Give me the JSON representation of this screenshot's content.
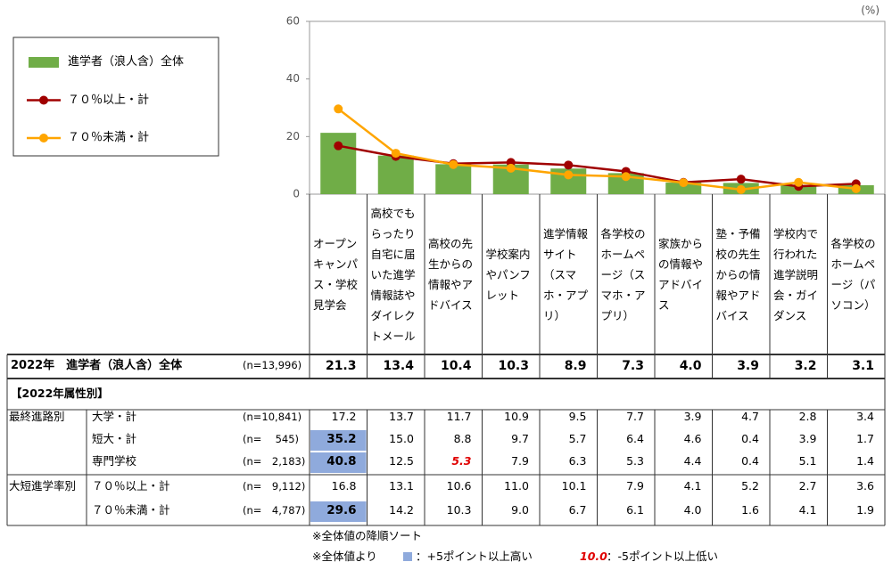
{
  "chart_data": {
    "type": "bar_line",
    "unit": "(%)",
    "ylim": [
      0,
      60
    ],
    "yticks": [
      0,
      20,
      40,
      60
    ],
    "categories": [
      "オープンキャンパス・学校見学会",
      "高校でもらったり自宅に届いた進学情報誌やダイレクトメール",
      "高校の先生からの情報やアドバイス",
      "学校案内やパンフレット",
      "進学情報サイト（スマホ・アプリ）",
      "各学校のホームページ（スマホ・アプリ）",
      "家族からの情報やアドバイス",
      "塾・予備校の先生からの情報やアドバイス",
      "学校内で行われた進学説明会・ガイダンス",
      "各学校のホームページ（パソコン）"
    ],
    "series": [
      {
        "name": "進学者（浪人含）全体",
        "type": "bar",
        "color": "#70ad47",
        "values": [
          21.3,
          13.4,
          10.4,
          10.3,
          8.9,
          7.3,
          4.0,
          3.9,
          3.2,
          3.1
        ],
        "value_labels": [
          "21.3",
          "13.4",
          "10.4",
          "10.3",
          "8.9",
          "7.3",
          "4.0",
          "3.9",
          "3.2",
          "3.1"
        ]
      },
      {
        "name": "７０％以上・計",
        "type": "line",
        "color": "#a00000",
        "values": [
          16.8,
          13.1,
          10.6,
          11.0,
          10.1,
          7.9,
          4.1,
          5.2,
          2.7,
          3.6
        ],
        "value_labels": [
          "16.8",
          "13.1",
          "10.6",
          "11.0",
          "10.1",
          "7.9",
          "4.1",
          "5.2",
          "2.7",
          "3.6"
        ]
      },
      {
        "name": "７０％未満・計",
        "type": "line",
        "color": "#ffa500",
        "values": [
          29.6,
          14.2,
          10.3,
          9.0,
          6.7,
          6.1,
          4.0,
          1.6,
          4.1,
          1.9
        ],
        "value_labels": [
          "29.6",
          "14.2",
          "10.3",
          "9.0",
          "6.7",
          "6.1",
          "4.0",
          "1.6",
          "4.1",
          "1.9"
        ]
      }
    ]
  },
  "table": {
    "overall_label": "2022年　進学者（浪人含）全体",
    "overall_n": "(n=13,996)",
    "section": "【2022年属性別】",
    "groups": [
      {
        "name": "最終進路別",
        "rows": [
          {
            "label": "大学・計",
            "n": "(n=10,841)",
            "values": [
              "17.2",
              "13.7",
              "11.7",
              "10.9",
              "9.5",
              "7.7",
              "3.9",
              "4.7",
              "2.8",
              "3.4"
            ]
          },
          {
            "label": "短大・計",
            "n": "(n=　 545)",
            "values": [
              "35.2",
              "15.0",
              "8.8",
              "9.7",
              "5.7",
              "6.4",
              "4.6",
              "0.4",
              "3.9",
              "1.7"
            ]
          },
          {
            "label": "専門学校",
            "n": "(n=　2,183)",
            "values": [
              "40.8",
              "12.5",
              "5.3",
              "7.9",
              "6.3",
              "5.3",
              "4.4",
              "0.4",
              "5.1",
              "1.4"
            ]
          }
        ]
      },
      {
        "name": "大短進学率別",
        "rows": [
          {
            "label": "７０％以上・計",
            "n": "(n=　9,112)"
          },
          {
            "label": "７０％未満・計",
            "n": "(n=　4,787)"
          }
        ]
      }
    ],
    "high_color": "#8faadc",
    "low_color": "#e00000",
    "high": [
      [
        0,
        1,
        0
      ],
      [
        0,
        2,
        0
      ],
      [
        1,
        1,
        0
      ]
    ],
    "low": [
      [
        0,
        2,
        2
      ]
    ]
  },
  "notes": {
    "sort": "※全体値の降順ソート",
    "basis": "※全体値より",
    "high_text": "：+5ポイント以上高い",
    "low_sample": "10.0",
    "low_text": "：-5ポイント以上低い"
  }
}
